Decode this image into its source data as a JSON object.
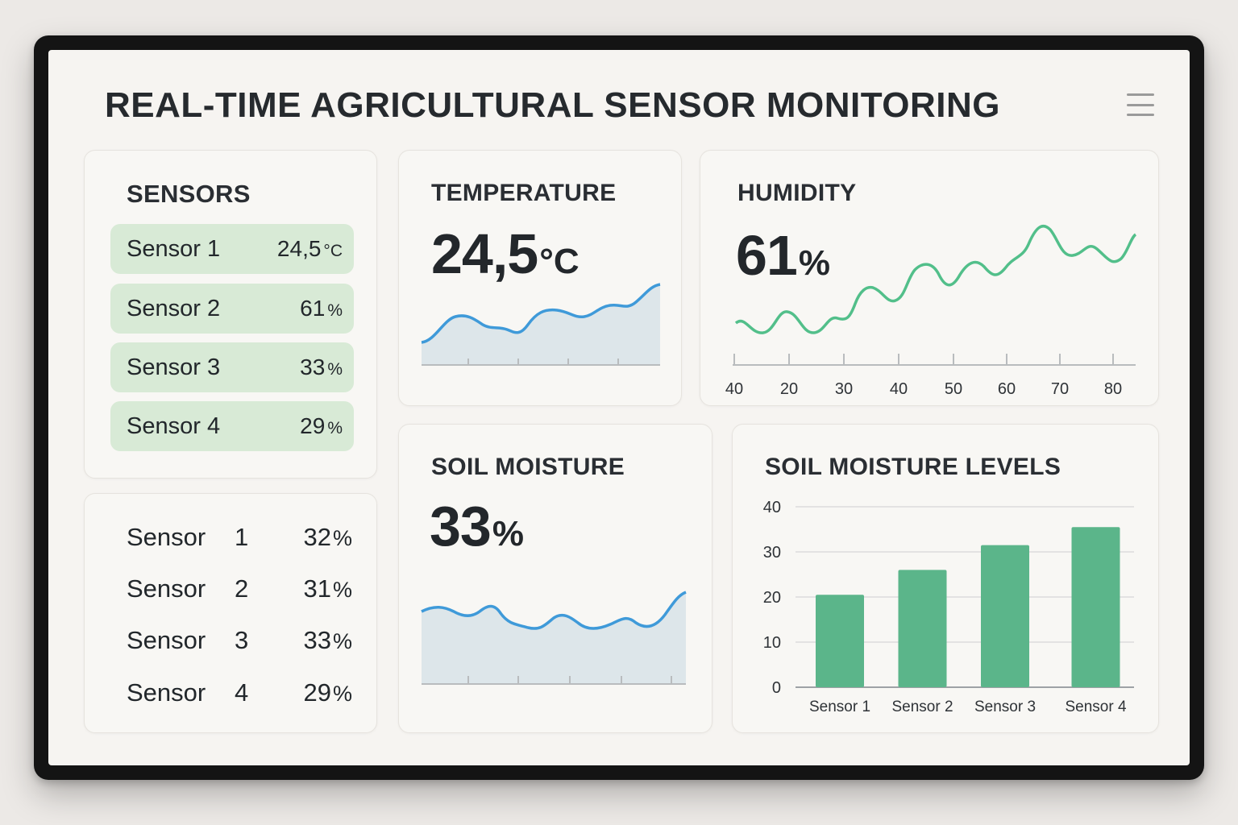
{
  "header": {
    "title": "REAL-TIME AGRICULTURAL SENSOR MONITORING",
    "menu_icon": "hamburger-menu-icon"
  },
  "sensors_card": {
    "title": "SENSORS",
    "items": [
      {
        "name": "Sensor 1",
        "value": "24,5",
        "unit": "°C"
      },
      {
        "name": "Sensor 2",
        "value": "61",
        "unit": "%"
      },
      {
        "name": "Sensor 3",
        "value": "33",
        "unit": "%"
      },
      {
        "name": "Sensor 4",
        "value": "29",
        "unit": "%"
      }
    ]
  },
  "sensor_list_card": {
    "rows": [
      {
        "name": "Sensor",
        "num": "1",
        "value": "32",
        "unit": "%"
      },
      {
        "name": "Sensor",
        "num": "2",
        "value": "31",
        "unit": "%"
      },
      {
        "name": "Sensor",
        "num": "3",
        "value": "33",
        "unit": "%"
      },
      {
        "name": "Sensor",
        "num": "4",
        "value": "29",
        "unit": "%"
      }
    ]
  },
  "temperature": {
    "title": "TEMPERATURE",
    "value": "24,5",
    "unit": "°C"
  },
  "humidity": {
    "title": "HUMIDITY",
    "value": "61",
    "unit": "%",
    "axis_ticks": [
      "40",
      "20",
      "30",
      "40",
      "50",
      "60",
      "70",
      "80"
    ]
  },
  "soil_moisture": {
    "title": "SOIL MOISTURE",
    "value": "33",
    "unit": "%"
  },
  "soil_levels": {
    "title": "SOIL MOISTURE LEVELS"
  },
  "colors": {
    "green": "#5bb58a",
    "blue": "#3f9ad9",
    "pill": "#d8ead6",
    "area_fill": "#dde6ea"
  },
  "chart_data": {
    "type": "bar",
    "categories": [
      "Sensor 1",
      "Sensor 2",
      "Sensor 3",
      "Sensor 4"
    ],
    "values": [
      20.5,
      26,
      31.5,
      35.5
    ],
    "ylim": [
      0,
      40
    ],
    "yticks": [
      0,
      10,
      20,
      30,
      40
    ],
    "grid": true
  }
}
